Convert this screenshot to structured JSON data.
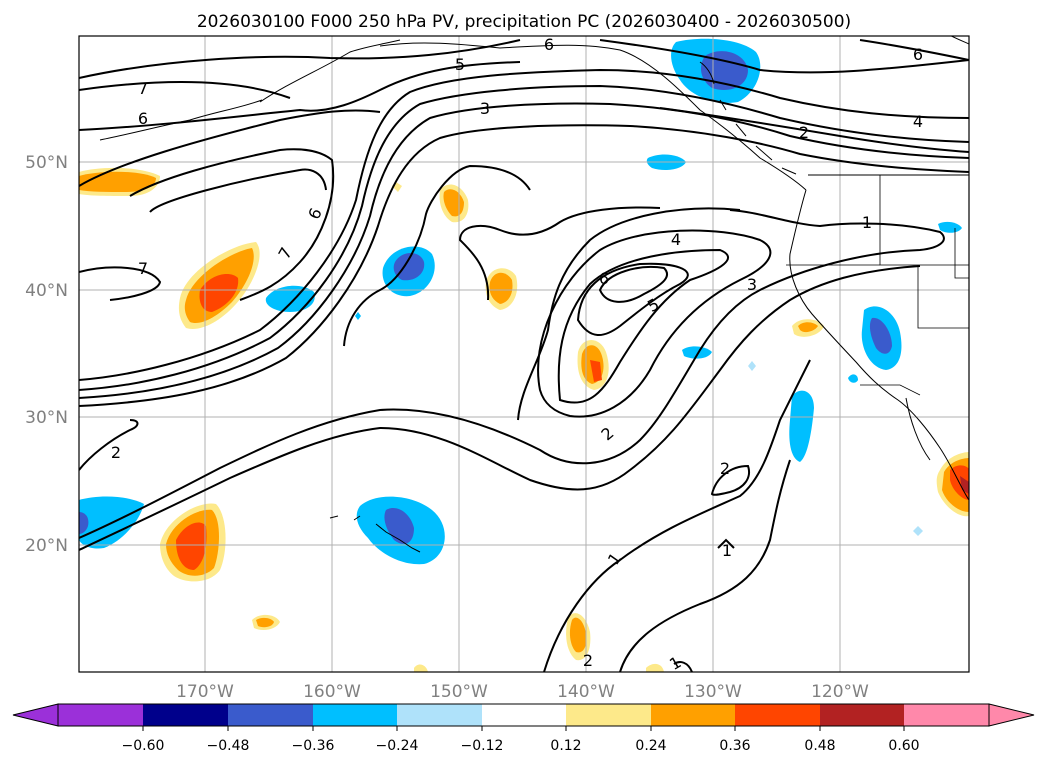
{
  "title": "2026030100 F000 250 hPa PV, precipitation PC (2026030400 - 2026030500)",
  "lat_labels": [
    "50°N",
    "40°N",
    "30°N",
    "20°N"
  ],
  "lon_labels": [
    "170°W",
    "160°W",
    "150°W",
    "140°W",
    "130°W",
    "120°W"
  ],
  "colorbar": {
    "ticks": [
      "−0.60",
      "−0.48",
      "−0.36",
      "−0.24",
      "−0.12",
      "0.12",
      "0.24",
      "0.36",
      "0.48",
      "0.60"
    ],
    "colors": [
      "#9b30d9",
      "#00008b",
      "#3a5bcc",
      "#00bfff",
      "#afe2fa",
      "#ffffff",
      "#fde98a",
      "#ffa000",
      "#ff4500",
      "#b22222",
      "#ff88aa",
      "#ff88aa"
    ]
  },
  "contour_labels": {
    "l7a": "7",
    "l6a": "6",
    "l7b": "7",
    "l5a": "5",
    "l3a": "3",
    "l6b": "6",
    "l6c": "6",
    "l2a": "2",
    "l4a": "4",
    "l7c": "7",
    "l6d": "6",
    "l1a": "1",
    "l4b": "4",
    "l6e": "6",
    "l5b": "5",
    "l3b": "3",
    "l2b": "2",
    "l2c": "2",
    "l2d": "2",
    "l1b": "1",
    "l1c": "1",
    "l2e": "2",
    "l1d": "1"
  }
}
